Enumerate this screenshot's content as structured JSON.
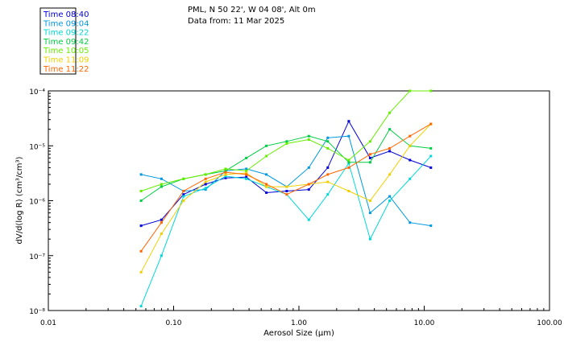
{
  "header": {
    "line1": "PML, N 50 22', W 04 08', Alt 0m",
    "line2": "Data from: 11 Mar 2025"
  },
  "chart_data": {
    "type": "line",
    "xscale": "log",
    "yscale": "log",
    "xlim": [
      0.01,
      100
    ],
    "ylim": [
      1e-08,
      0.0001
    ],
    "xlabel": "Aerosol Size (µm)",
    "ylabel": "dV/d(log R) (cm³/cm³)",
    "x_ticks": [
      {
        "value": 0.01,
        "label": "0.01"
      },
      {
        "value": 0.1,
        "label": "0.10"
      },
      {
        "value": 1,
        "label": "1.00"
      },
      {
        "value": 10,
        "label": "10.00"
      },
      {
        "value": 100,
        "label": "100.00"
      }
    ],
    "y_ticks": [
      {
        "value": 1e-08,
        "label": "10⁻⁸"
      },
      {
        "value": 1e-07,
        "label": "10⁻⁷"
      },
      {
        "value": 1e-06,
        "label": "10⁻⁶"
      },
      {
        "value": 1e-05,
        "label": "10⁻⁵"
      },
      {
        "value": 0.0001,
        "label": "10⁻⁴"
      }
    ],
    "x": [
      0.055,
      0.08,
      0.12,
      0.18,
      0.26,
      0.38,
      0.55,
      0.8,
      1.2,
      1.7,
      2.5,
      3.7,
      5.3,
      7.7,
      11.3
    ],
    "legend_position": "top-left",
    "series": [
      {
        "name": "Time 08:40",
        "color": "#0000d8",
        "values": [
          3.5e-07,
          4.5e-07,
          1.3e-06,
          2e-06,
          2.6e-06,
          2.7e-06,
          1.4e-06,
          1.5e-06,
          1.6e-06,
          4e-06,
          2.8e-05,
          6e-06,
          8e-06,
          5.5e-06,
          4e-06
        ]
      },
      {
        "name": "Time 09:04",
        "color": "#0098e0",
        "values": [
          3e-06,
          2.5e-06,
          1.5e-06,
          1.6e-06,
          3.5e-06,
          3.8e-06,
          3e-06,
          1.8e-06,
          4e-06,
          1.4e-05,
          1.5e-05,
          6e-07,
          1.2e-06,
          4e-07,
          3.5e-07
        ]
      },
      {
        "name": "Time 09:22",
        "color": "#00d8d8",
        "values": [
          1.2e-08,
          1e-07,
          1.2e-06,
          1.7e-06,
          2.8e-06,
          2.5e-06,
          1.8e-06,
          1.3e-06,
          4.5e-07,
          1.3e-06,
          4.8e-06,
          2e-07,
          1e-06,
          2.5e-06,
          6.5e-06
        ]
      },
      {
        "name": "Time 09:42",
        "color": "#00cc44",
        "values": [
          1e-06,
          1.8e-06,
          2.5e-06,
          3e-06,
          3.5e-06,
          6e-06,
          1e-05,
          1.2e-05,
          1.5e-05,
          1.2e-05,
          5e-06,
          5e-06,
          2e-05,
          1e-05,
          9e-06
        ]
      },
      {
        "name": "Time 10:05",
        "color": "#66ee00",
        "values": [
          1.5e-06,
          2e-06,
          2.5e-06,
          3e-06,
          3.8e-06,
          3.5e-06,
          6.5e-06,
          1.1e-05,
          1.3e-05,
          9e-06,
          5.5e-06,
          1.2e-05,
          4e-05,
          0.0001,
          0.0001
        ]
      },
      {
        "name": "Time 11:09",
        "color": "#f0d000",
        "values": [
          5e-08,
          2.5e-07,
          1e-06,
          2.2e-06,
          3e-06,
          3.2e-06,
          1.8e-06,
          1.8e-06,
          2e-06,
          2.2e-06,
          1.5e-06,
          1e-06,
          3e-06,
          1e-05,
          2.5e-05
        ]
      },
      {
        "name": "Time 11:22",
        "color": "#ff6600",
        "values": [
          1.2e-07,
          4e-07,
          1.5e-06,
          2.5e-06,
          3.3e-06,
          3e-06,
          2e-06,
          1.3e-06,
          2e-06,
          3e-06,
          4e-06,
          7e-06,
          9e-06,
          1.5e-05,
          2.5e-05
        ]
      }
    ]
  }
}
